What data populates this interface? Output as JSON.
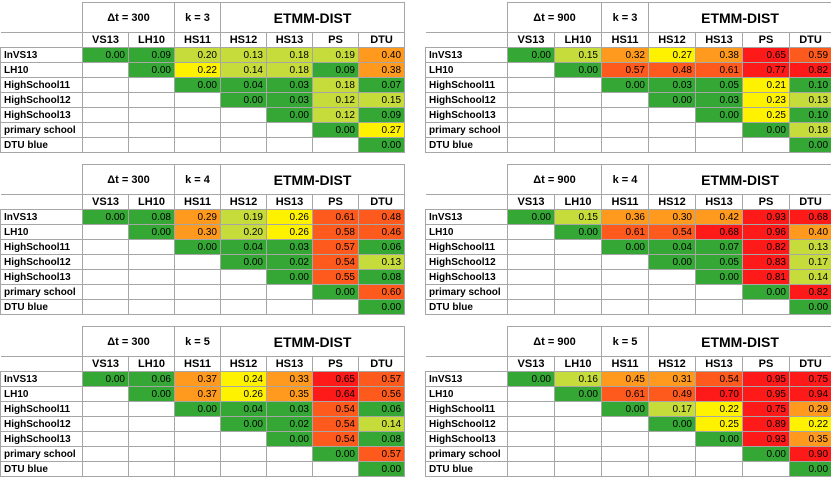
{
  "columns": [
    "VS13",
    "LH10",
    "HS11",
    "HS12",
    "HS13",
    "PS",
    "DTU"
  ],
  "rows": [
    "InVS13",
    "LH10",
    "HighSchool11",
    "HighSchool12",
    "HighSchool13",
    "primary school",
    "DTU blue"
  ],
  "metric_title": "ETMM-DIST",
  "colors": {
    "green": "#34a734",
    "yellow_green": "#c6dc3a",
    "yellow": "#fff200",
    "orange": "#ff9a1e",
    "red_orange": "#ff5a1e",
    "red": "#ff1a1a"
  },
  "tables": [
    {
      "dt": "Δt = 300",
      "k": "k = 3",
      "values": [
        [
          "0.00",
          "0.09",
          "0.20",
          "0.13",
          "0.18",
          "0.19",
          "0.40"
        ],
        [
          "",
          "0.00",
          "0.22",
          "0.14",
          "0.18",
          "0.09",
          "0.38"
        ],
        [
          "",
          "",
          "0.00",
          "0.04",
          "0.03",
          "0.18",
          "0.07"
        ],
        [
          "",
          "",
          "",
          "0.00",
          "0.03",
          "0.12",
          "0.15"
        ],
        [
          "",
          "",
          "",
          "",
          "0.00",
          "0.12",
          "0.09"
        ],
        [
          "",
          "",
          "",
          "",
          "",
          "0.00",
          "0.27"
        ],
        [
          "",
          "",
          "",
          "",
          "",
          "",
          "0.00"
        ]
      ]
    },
    {
      "dt": "Δt = 900",
      "k": "k = 3",
      "values": [
        [
          "0.00",
          "0.15",
          "0.32",
          "0.27",
          "0.38",
          "0.65",
          "0.59"
        ],
        [
          "",
          "0.00",
          "0.57",
          "0.48",
          "0.61",
          "0.77",
          "0.82"
        ],
        [
          "",
          "",
          "0.00",
          "0.03",
          "0.05",
          "0.21",
          "0.10"
        ],
        [
          "",
          "",
          "",
          "0.00",
          "0.03",
          "0.23",
          "0.13"
        ],
        [
          "",
          "",
          "",
          "",
          "0.00",
          "0.25",
          "0.10"
        ],
        [
          "",
          "",
          "",
          "",
          "",
          "0.00",
          "0.18"
        ],
        [
          "",
          "",
          "",
          "",
          "",
          "",
          "0.00"
        ]
      ]
    },
    {
      "dt": "Δt = 300",
      "k": "k = 4",
      "values": [
        [
          "0.00",
          "0.08",
          "0.29",
          "0.19",
          "0.26",
          "0.61",
          "0.48"
        ],
        [
          "",
          "0.00",
          "0.30",
          "0.20",
          "0.26",
          "0.58",
          "0.46"
        ],
        [
          "",
          "",
          "0.00",
          "0.04",
          "0.03",
          "0.57",
          "0.06"
        ],
        [
          "",
          "",
          "",
          "0.00",
          "0.02",
          "0.54",
          "0.13"
        ],
        [
          "",
          "",
          "",
          "",
          "0.00",
          "0.55",
          "0.08"
        ],
        [
          "",
          "",
          "",
          "",
          "",
          "0.00",
          "0.60"
        ],
        [
          "",
          "",
          "",
          "",
          "",
          "",
          "0.00"
        ]
      ]
    },
    {
      "dt": "Δt = 900",
      "k": "k = 4",
      "values": [
        [
          "0.00",
          "0.15",
          "0.36",
          "0.30",
          "0.42",
          "0.93",
          "0.68"
        ],
        [
          "",
          "0.00",
          "0.61",
          "0.54",
          "0.68",
          "0.96",
          "0.40"
        ],
        [
          "",
          "",
          "0.00",
          "0.04",
          "0.07",
          "0.82",
          "0.13"
        ],
        [
          "",
          "",
          "",
          "0.00",
          "0.05",
          "0.83",
          "0.17"
        ],
        [
          "",
          "",
          "",
          "",
          "0.00",
          "0.81",
          "0.14"
        ],
        [
          "",
          "",
          "",
          "",
          "",
          "0.00",
          "0.82"
        ],
        [
          "",
          "",
          "",
          "",
          "",
          "",
          "0.00"
        ]
      ]
    },
    {
      "dt": "Δt = 300",
      "k": "k = 5",
      "values": [
        [
          "0.00",
          "0.06",
          "0.37",
          "0.24",
          "0.33",
          "0.65",
          "0.57"
        ],
        [
          "",
          "0.00",
          "0.37",
          "0.26",
          "0.35",
          "0.64",
          "0.56"
        ],
        [
          "",
          "",
          "0.00",
          "0.04",
          "0.03",
          "0.54",
          "0.06"
        ],
        [
          "",
          "",
          "",
          "0.00",
          "0.02",
          "0.54",
          "0.14"
        ],
        [
          "",
          "",
          "",
          "",
          "0.00",
          "0.54",
          "0.08"
        ],
        [
          "",
          "",
          "",
          "",
          "",
          "0.00",
          "0.57"
        ],
        [
          "",
          "",
          "",
          "",
          "",
          "",
          "0.00"
        ]
      ]
    },
    {
      "dt": "Δt = 900",
      "k": "k = 5",
      "values": [
        [
          "0.00",
          "0.16",
          "0.45",
          "0.31",
          "0.54",
          "0.95",
          "0.75"
        ],
        [
          "",
          "0.00",
          "0.61",
          "0.49",
          "0.70",
          "0.95",
          "0.94"
        ],
        [
          "",
          "",
          "0.00",
          "0.17",
          "0.22",
          "0.75",
          "0.29"
        ],
        [
          "",
          "",
          "",
          "0.00",
          "0.25",
          "0.89",
          "0.22"
        ],
        [
          "",
          "",
          "",
          "",
          "0.00",
          "0.93",
          "0.35"
        ],
        [
          "",
          "",
          "",
          "",
          "",
          "0.00",
          "0.90"
        ],
        [
          "",
          "",
          "",
          "",
          "",
          "",
          "0.00"
        ]
      ]
    }
  ]
}
